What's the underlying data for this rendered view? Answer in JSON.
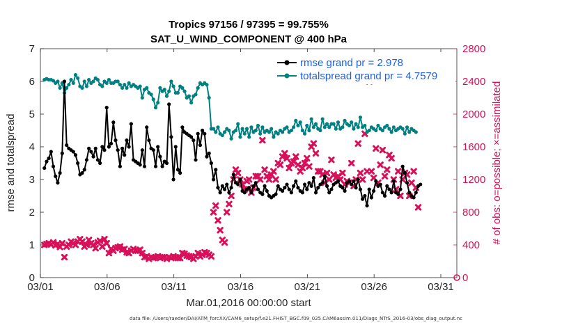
{
  "chart_data": {
    "type": "line",
    "title_line1": "Tropics 97156 / 97395 = 99.755%",
    "title_line2": "SAT_U_WIND_COMPONENT @ 400 hPa",
    "xlabel": "Mar.01,2016 00:00:00 start",
    "ylabel_left": "rmse and totalspread",
    "ylabel_right": "# of obs: o=possible; ×=assimilated",
    "footer": "data file: /Users/raeder/DAI/ATM_forcXX/CAM6_setup/f.e21.FHIST_BGC.f09_025.CAM6assim.011/Diags_NTrS_2016-03/obs_diag_output.nc",
    "xlim": [
      1.0,
      32.2
    ],
    "ylim_left": [
      0,
      7
    ],
    "ylim_right": [
      0,
      2800
    ],
    "x_ticks": [
      1,
      6,
      11,
      16,
      21,
      26,
      31
    ],
    "x_tick_labels": [
      "03/01",
      "03/06",
      "03/11",
      "03/16",
      "03/21",
      "03/26",
      "03/31"
    ],
    "y_left_ticks": [
      "0",
      "1",
      "2",
      "3",
      "4",
      "5",
      "6",
      "7"
    ],
    "y_right_ticks": [
      "0",
      "400",
      "800",
      "1200",
      "1600",
      "2000",
      "2400",
      "2800"
    ],
    "colors": {
      "rmse": "#000000",
      "spread": "#008080",
      "obs": "#d8105a",
      "legend_text": "#1f5fe0",
      "right_axis": "#d8105a"
    },
    "series": [
      {
        "name": "rmse grand pr = 2.978",
        "key": "rmse",
        "values": [
          3.35,
          3.55,
          3.65,
          3.85,
          3.4,
          3.1,
          2.9,
          3.2,
          3.8,
          6.0,
          4.05,
          3.95,
          3.9,
          3.85,
          3.75,
          3.5,
          3.15,
          3.2,
          3.3,
          3.6,
          3.95,
          3.85,
          3.7,
          3.95,
          3.6,
          3.5,
          4.0,
          3.9,
          5.2,
          4.0,
          4.1,
          4.75,
          4.2,
          3.9,
          3.4,
          3.95,
          3.75,
          4.2,
          4.0,
          4.7,
          3.6,
          3.55,
          3.5,
          3.45,
          3.9,
          3.4,
          4.6,
          4.2,
          3.95,
          3.9,
          3.4,
          4.0,
          3.7,
          3.4,
          3.55,
          3.5,
          5.3,
          4.3,
          3.0,
          4.0,
          3.3,
          3.2,
          4.6,
          4.45,
          4.4,
          4.35,
          4.3,
          4.2,
          3.6,
          4.4,
          4.05,
          4.5,
          4.4,
          3.7,
          3.8,
          3.5,
          3.0,
          3.3,
          2.75,
          2.6,
          2.8,
          2.7,
          2.85,
          2.6,
          2.75,
          3.15,
          2.9,
          2.85,
          3.0,
          2.65,
          2.6,
          2.7,
          2.75,
          2.6,
          2.8,
          2.9,
          2.7,
          2.6,
          2.55,
          2.8,
          2.65,
          2.5,
          2.45,
          2.5,
          2.55,
          2.8,
          2.7,
          2.65,
          2.75,
          2.85,
          2.7,
          2.6,
          2.8,
          2.95,
          2.75,
          2.65,
          2.6,
          2.85,
          2.7,
          2.9,
          2.8,
          3.05,
          2.6,
          2.75,
          2.85,
          2.9,
          3.1,
          2.8,
          2.6,
          2.7,
          2.85,
          2.9,
          2.95,
          2.8,
          2.75,
          2.65,
          2.9,
          2.95,
          2.85,
          2.95,
          2.75,
          3.0,
          2.7,
          2.4,
          2.5,
          2.2,
          2.7,
          2.45,
          2.65,
          2.95,
          2.8,
          2.85,
          2.6,
          2.5,
          2.8,
          2.7,
          2.6,
          2.95,
          2.6,
          2.55,
          2.7,
          3.4,
          3.2,
          2.9,
          2.6,
          2.5,
          2.45,
          2.6,
          2.8,
          2.85
        ]
      },
      {
        "name": "totalspread grand pr = 4.7579",
        "key": "spread",
        "values": [
          6.05,
          6.08,
          6.05,
          6.05,
          6.02,
          5.95,
          6.0,
          5.8,
          5.95,
          5.65,
          5.8,
          5.9,
          6.05,
          5.95,
          6.2,
          6.1,
          5.85,
          5.8,
          6.0,
          5.85,
          6.05,
          5.95,
          6.0,
          6.1,
          6.05,
          5.9,
          5.85,
          6.0,
          5.95,
          6.05,
          5.95,
          5.95,
          6.0,
          6.0,
          5.9,
          5.8,
          5.9,
          5.8,
          5.95,
          5.85,
          5.9,
          5.85,
          5.8,
          5.85,
          5.5,
          5.75,
          5.8,
          5.65,
          5.6,
          5.45,
          5.2,
          5.35,
          5.8,
          5.7,
          5.75,
          5.55,
          5.7,
          6.0,
          5.85,
          5.65,
          5.65,
          5.85,
          5.8,
          5.7,
          5.5,
          5.55,
          5.35,
          5.55,
          5.6,
          5.8,
          5.95,
          5.9,
          5.95,
          5.9,
          5.5,
          4.55,
          4.55,
          4.45,
          4.6,
          4.4,
          4.35,
          4.45,
          4.55,
          4.5,
          4.25,
          4.45,
          4.5,
          4.7,
          4.3,
          4.55,
          4.4,
          4.55,
          4.3,
          4.6,
          4.45,
          4.5,
          4.65,
          4.4,
          4.6,
          4.45,
          4.5,
          4.45,
          4.55,
          4.3,
          4.45,
          4.4,
          4.5,
          4.45,
          4.55,
          4.6,
          4.45,
          4.5,
          4.6,
          4.8,
          4.65,
          4.75,
          4.5,
          4.4,
          4.65,
          4.5,
          4.85,
          4.6,
          4.7,
          4.55,
          4.5,
          4.85,
          4.6,
          4.7,
          4.6,
          4.7,
          4.7,
          4.55,
          4.75,
          4.55,
          4.6,
          4.8,
          4.7,
          4.65,
          4.75,
          4.55,
          4.7,
          4.6,
          4.9,
          4.6,
          4.65,
          4.45,
          4.5,
          4.6,
          4.55,
          4.5,
          4.65,
          4.55,
          4.5,
          4.6,
          4.65,
          4.55,
          4.45,
          4.6,
          4.5,
          4.55,
          4.6,
          4.55,
          4.4,
          4.6,
          4.45,
          4.55,
          4.5,
          4.45
        ]
      },
      {
        "name": "# of obs assimilated",
        "key": "obs",
        "axis": "right",
        "values": [
          400,
          410,
          420,
          405,
          430,
          395,
          410,
          375,
          420,
          250,
          380,
          400,
          440,
          420,
          400,
          440,
          470,
          440,
          380,
          400,
          460,
          420,
          400,
          360,
          430,
          450,
          380,
          470,
          420,
          300,
          350,
          330,
          360,
          370,
          380,
          340,
          350,
          310,
          300,
          330,
          350,
          330,
          330,
          340,
          300,
          250,
          260,
          230,
          250,
          240,
          250,
          260,
          240,
          250,
          250,
          230,
          250,
          240,
          260,
          250,
          240,
          240,
          300,
          290,
          270,
          260,
          250,
          230,
          260,
          300,
          260,
          280,
          310,
          300,
          280,
          260,
          800,
          880,
          700,
          580,
          460,
          430,
          800,
          900,
          1000,
          1200,
          1320,
          1280,
          1200,
          1140,
          1080,
          1180,
          1200,
          1040,
          1100,
          1240,
          1240,
          1200,
          1680,
          1320,
          1240,
          1200,
          1260,
          1300,
          1200,
          1400,
          1380,
          1480,
          1520,
          1460,
          1340,
          1400,
          1420,
          1480,
          1380,
          1300,
          1340,
          1400,
          1460,
          1360,
          1600,
          1640,
          1520,
          1300,
          1300,
          1260,
          1160,
          1280,
          1200,
          1440,
          1260,
          1220,
          1240,
          1200,
          1280,
          1140,
          1180,
          1160,
          1400,
          1120,
          1200,
          1640,
          1280,
          1200,
          1760,
          1300,
          2400,
          1300,
          1220,
          1580,
          1160,
          1380,
          1560,
          1240,
          1320,
          1500,
          1460,
          1200,
          1080,
          1300,
          1000,
          1200,
          1280,
          1260,
          1000,
          1160,
          1300,
          1100,
          860,
          0
        ]
      }
    ]
  }
}
